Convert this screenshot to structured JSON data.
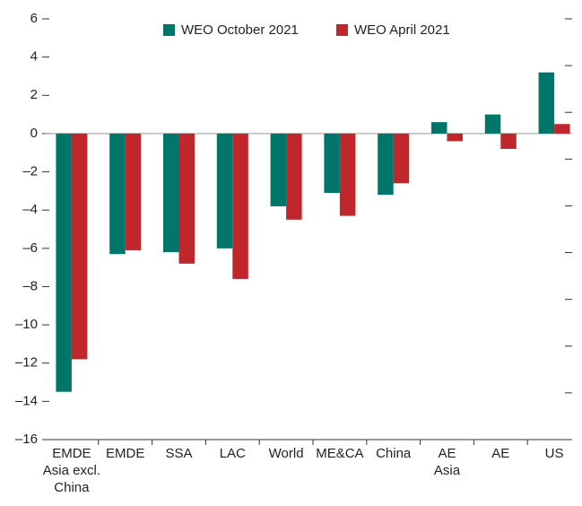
{
  "chart_data": {
    "type": "bar",
    "categories": [
      "EMDE\nAsia excl.\nChina",
      "EMDE",
      "SSA",
      "LAC",
      "World",
      "ME&CA",
      "China",
      "AE\nAsia",
      "AE",
      "US"
    ],
    "series": [
      {
        "name": "WEO October 2021",
        "color": "#00766a",
        "values": [
          -13.5,
          -6.3,
          -6.2,
          -6.0,
          -3.8,
          -3.1,
          -3.2,
          0.6,
          1.0,
          3.2
        ]
      },
      {
        "name": "WEO April 2021",
        "color": "#c0272d",
        "values": [
          -11.8,
          -6.1,
          -6.8,
          -7.6,
          -4.5,
          -4.3,
          -2.6,
          -0.4,
          -0.8,
          0.5
        ]
      }
    ],
    "ylim": [
      -16,
      6
    ],
    "yticks": [
      {
        "value": -16,
        "label": "–16"
      },
      {
        "value": -14,
        "label": "–14"
      },
      {
        "value": -12,
        "label": "–12"
      },
      {
        "value": -10,
        "label": "–10"
      },
      {
        "value": -8,
        "label": "–8"
      },
      {
        "value": -6,
        "label": "–6"
      },
      {
        "value": -4,
        "label": "–4"
      },
      {
        "value": -2,
        "label": "–2"
      },
      0,
      2,
      4,
      6
    ],
    "legend": "top"
  }
}
